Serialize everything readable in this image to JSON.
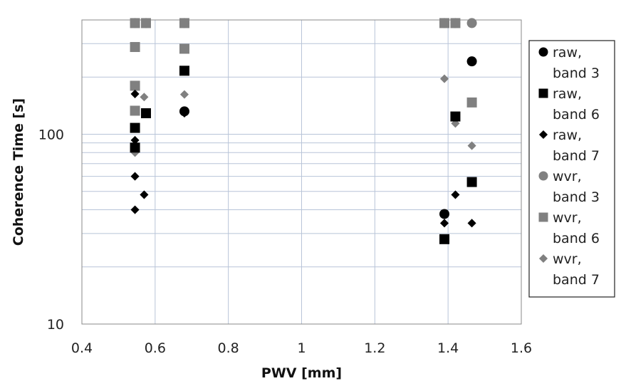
{
  "chart_data": {
    "type": "scatter",
    "xlabel": "PWV [mm]",
    "ylabel": "Coherence Time [s]",
    "xlim": [
      0.4,
      1.6
    ],
    "ylim": [
      10,
      400
    ],
    "y_scale": "log",
    "grid": true,
    "legend_position": "right",
    "x_ticks": [
      "0.4",
      "0.6",
      "0.8",
      "1",
      "1.2",
      "1.4",
      "1.6"
    ],
    "y_ticks": [
      "10",
      "100"
    ],
    "series": [
      {
        "name": "raw, band 3",
        "marker": "circle",
        "color": "#000000",
        "points": [
          [
            0.68,
            132
          ],
          [
            1.39,
            38
          ],
          [
            1.465,
            242
          ]
        ]
      },
      {
        "name": "raw, band 6",
        "marker": "square",
        "color": "#000000",
        "points": [
          [
            0.545,
            108
          ],
          [
            0.545,
            85
          ],
          [
            0.575,
            129
          ],
          [
            0.68,
            216
          ],
          [
            1.39,
            28
          ],
          [
            1.42,
            124
          ],
          [
            1.465,
            56
          ]
        ]
      },
      {
        "name": "raw, band 7",
        "marker": "diamond",
        "color": "#000000",
        "points": [
          [
            0.545,
            93
          ],
          [
            0.545,
            60
          ],
          [
            0.545,
            40
          ],
          [
            0.545,
            163
          ],
          [
            0.57,
            48
          ],
          [
            0.68,
            129
          ],
          [
            1.39,
            34
          ],
          [
            1.42,
            48
          ],
          [
            1.465,
            34
          ]
        ]
      },
      {
        "name": "wvr, band 3",
        "marker": "circle",
        "color": "#808080",
        "points": [
          [
            0.545,
            385
          ],
          [
            0.575,
            385
          ],
          [
            0.68,
            385
          ],
          [
            1.39,
            385
          ],
          [
            1.42,
            385
          ],
          [
            1.465,
            385
          ]
        ]
      },
      {
        "name": "wvr, band 6",
        "marker": "square",
        "color": "#808080",
        "points": [
          [
            0.545,
            385
          ],
          [
            0.545,
            288
          ],
          [
            0.545,
            180
          ],
          [
            0.545,
            133
          ],
          [
            0.575,
            385
          ],
          [
            0.68,
            385
          ],
          [
            0.68,
            282
          ],
          [
            1.39,
            385
          ],
          [
            1.42,
            385
          ],
          [
            1.465,
            147
          ]
        ]
      },
      {
        "name": "wvr, band 7",
        "marker": "diamond",
        "color": "#808080",
        "points": [
          [
            0.545,
            80
          ],
          [
            0.545,
            88
          ],
          [
            0.57,
            157
          ],
          [
            0.68,
            162
          ],
          [
            1.39,
            196
          ],
          [
            1.42,
            114
          ],
          [
            1.465,
            87
          ]
        ]
      }
    ]
  }
}
